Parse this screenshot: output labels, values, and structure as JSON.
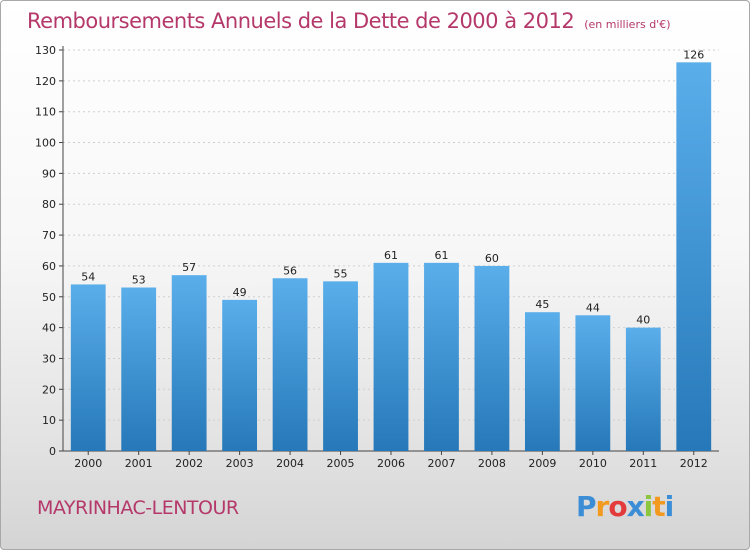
{
  "header": {
    "title": "Remboursements Annuels de la Dette de 2000 à 2012",
    "subtitle": "(en milliers d'€)"
  },
  "footer": {
    "commune": "MAYRINHAC-LENTOUR",
    "logo_letters": [
      "P",
      "r",
      "o",
      "x",
      "i",
      "t",
      "i"
    ],
    "logo_colors": [
      "#3b8ed6",
      "#f29a1f",
      "#e33b3b",
      "#3b8ed6",
      "#8cc63f",
      "#f29a1f",
      "#3b8ed6"
    ]
  },
  "chart_data": {
    "type": "bar",
    "title": "Remboursements Annuels de la Dette de 2000 à 2012",
    "subtitle": "(en milliers d'€)",
    "categories": [
      "2000",
      "2001",
      "2002",
      "2003",
      "2004",
      "2005",
      "2006",
      "2007",
      "2008",
      "2009",
      "2010",
      "2011",
      "2012"
    ],
    "values": [
      54,
      53,
      57,
      49,
      56,
      55,
      61,
      61,
      60,
      45,
      44,
      40,
      126
    ],
    "ylim": [
      0,
      130
    ],
    "yticks": [
      0,
      10,
      20,
      30,
      40,
      50,
      60,
      70,
      80,
      90,
      100,
      110,
      120,
      130
    ],
    "grid": true,
    "bar_color_top": "#5aaeea",
    "bar_color_bottom": "#2678b8"
  }
}
